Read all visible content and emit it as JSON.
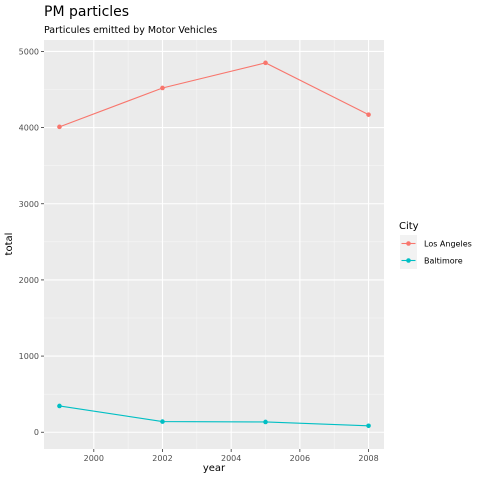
{
  "chart_data": {
    "type": "line",
    "title": "PM particles",
    "subtitle": "Particules emitted by Motor Vehicles",
    "xlabel": "year",
    "ylabel": "total",
    "x": [
      1999,
      2002,
      2005,
      2008
    ],
    "x_ticks": [
      "2000",
      "2002",
      "2004",
      "2006",
      "2008"
    ],
    "y_ticks": [
      "0",
      "1000",
      "2000",
      "3000",
      "4000",
      "5000"
    ],
    "xlim": [
      1998.55,
      2008.45
    ],
    "ylim": [
      -220,
      5150
    ],
    "grid": true,
    "legend": {
      "title": "City",
      "position": "right"
    },
    "series": [
      {
        "name": "Los Angeles",
        "color": "#F8766D",
        "values": [
          4010,
          4520,
          4850,
          4170
        ]
      },
      {
        "name": "Baltimore",
        "color": "#00BFC4",
        "values": [
          345,
          140,
          135,
          85
        ]
      }
    ]
  }
}
